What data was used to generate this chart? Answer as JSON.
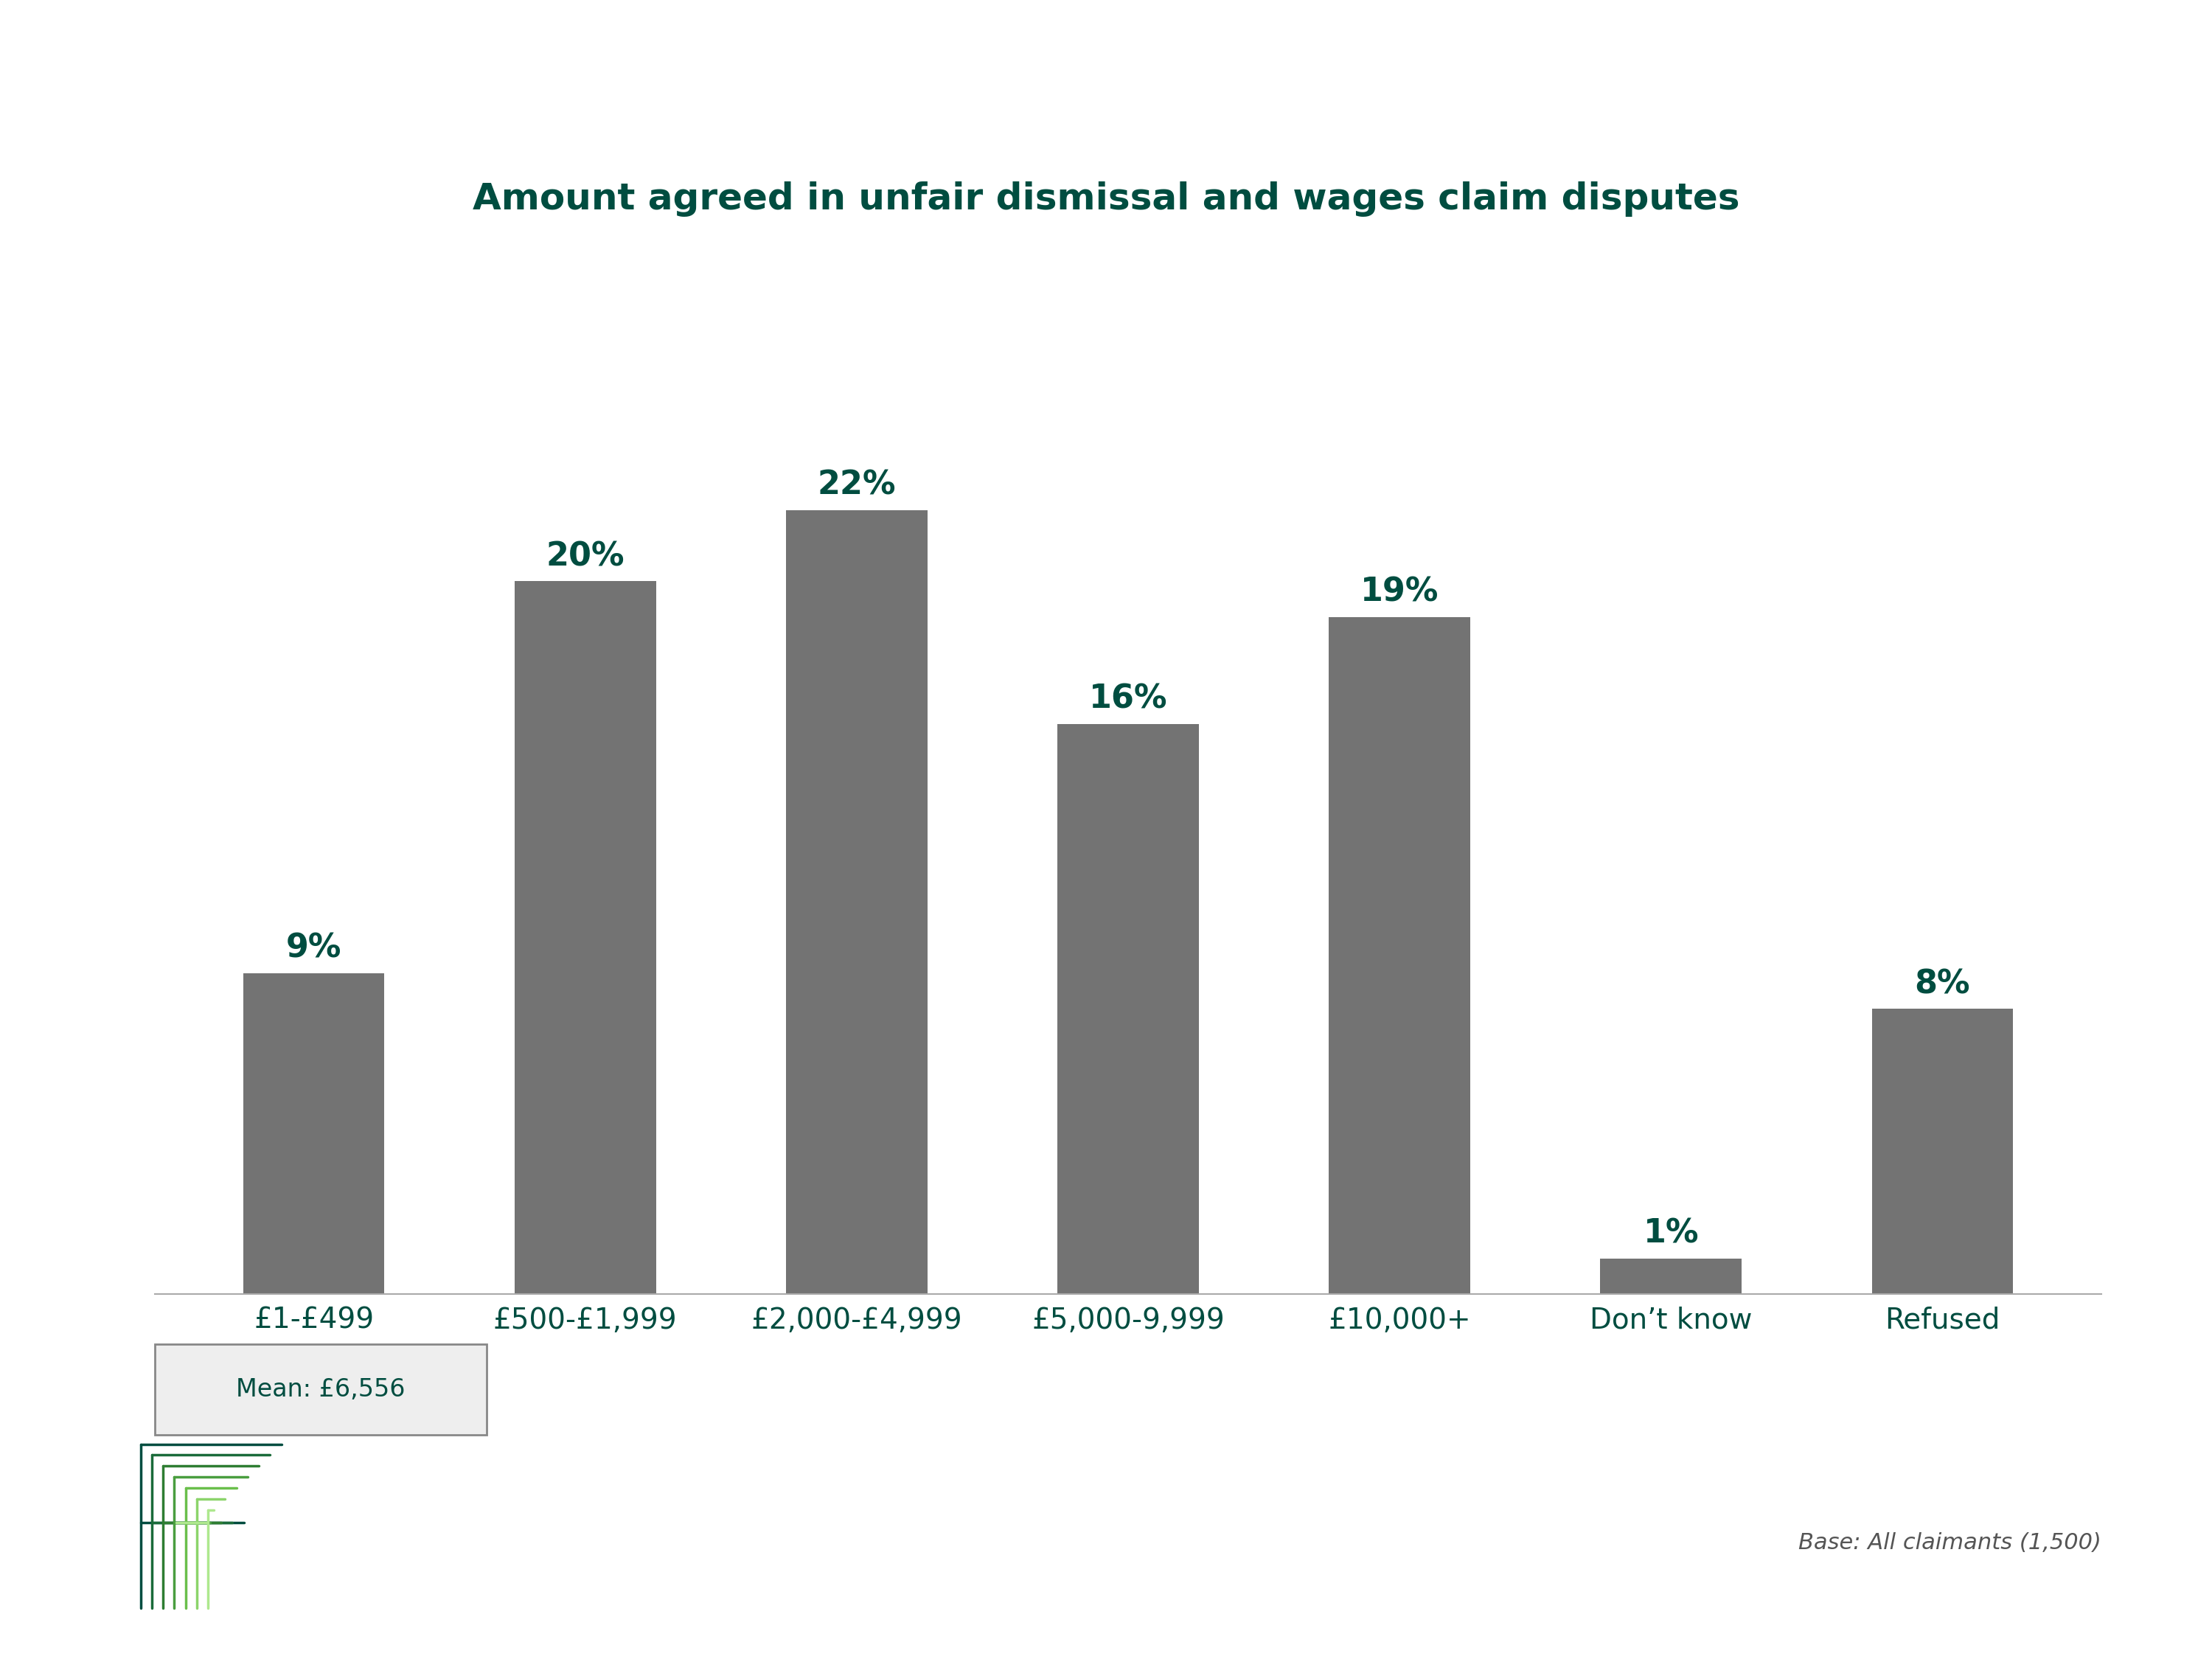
{
  "title": "Amount agreed in unfair dismissal and wages claim disputes",
  "categories": [
    "£1-£499",
    "£500-£1,999",
    "£2,000-£4,999",
    "£5,000-9,999",
    "£10,000+",
    "Don’t know",
    "Refused"
  ],
  "values": [
    9,
    20,
    22,
    16,
    19,
    1,
    8
  ],
  "bar_color": "#737373",
  "label_color": "#004d40",
  "title_color": "#004d40",
  "tick_color": "#004d40",
  "background_color": "#ffffff",
  "mean_text": "Mean: £6,556",
  "base_text": "Base: All claimants (1,500)",
  "title_fontsize": 36,
  "label_fontsize": 32,
  "tick_fontsize": 28,
  "mean_fontsize": 24,
  "base_fontsize": 22,
  "ylim": [
    0,
    27
  ],
  "logo_colors": [
    "#004d40",
    "#1a6b3a",
    "#2e7d32",
    "#4a9e3f",
    "#6abf4b",
    "#8cd46b",
    "#aee88e"
  ]
}
